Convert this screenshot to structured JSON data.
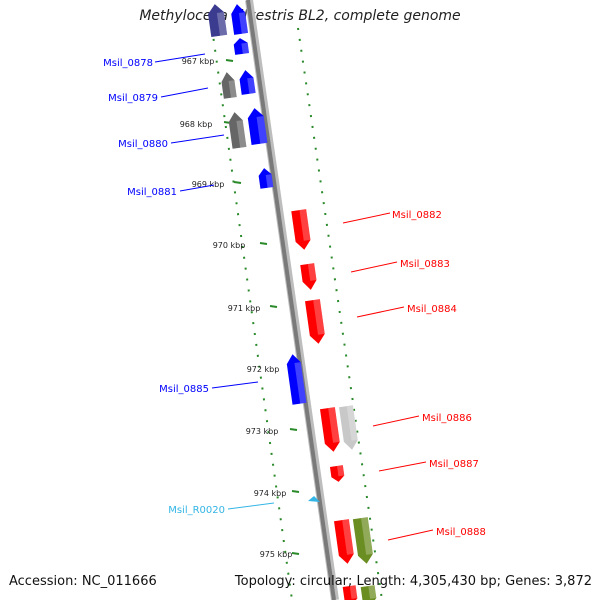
{
  "title": "Methylocella silvestris BL2, complete genome",
  "footer": {
    "accession": "Accession: NC_011666",
    "topology": "Topology: circular; Length: 4,305,430 bp; Genes: 3,872"
  },
  "colors": {
    "forward_gene": "#0000ff",
    "reverse_gene": "#ff0000",
    "rna_gene": "#33b5e5",
    "pseudo_gene_dark": "#666666",
    "pseudo_gene_light": "#c8c8c8",
    "olive_gene": "#6b8e23",
    "tick": "#2a8a2a",
    "axis": "#888888"
  },
  "ticks": [
    "967 kbp",
    "968 kbp",
    "969 kbp",
    "970 kbp",
    "971 kbp",
    "972 kbp",
    "973 kbp",
    "974 kbp",
    "975 kbp"
  ],
  "genes": [
    {
      "id": "Msil_0878",
      "strand": "forward"
    },
    {
      "id": "Msil_0879",
      "strand": "forward"
    },
    {
      "id": "Msil_0880",
      "strand": "forward"
    },
    {
      "id": "Msil_0881",
      "strand": "forward"
    },
    {
      "id": "Msil_0882",
      "strand": "reverse"
    },
    {
      "id": "Msil_0883",
      "strand": "reverse"
    },
    {
      "id": "Msil_0884",
      "strand": "reverse"
    },
    {
      "id": "Msil_0885",
      "strand": "forward"
    },
    {
      "id": "Msil_0886",
      "strand": "reverse"
    },
    {
      "id": "Msil_0887",
      "strand": "reverse"
    },
    {
      "id": "Msil_R0020",
      "strand": "rna"
    },
    {
      "id": "Msil_0888",
      "strand": "reverse"
    }
  ]
}
